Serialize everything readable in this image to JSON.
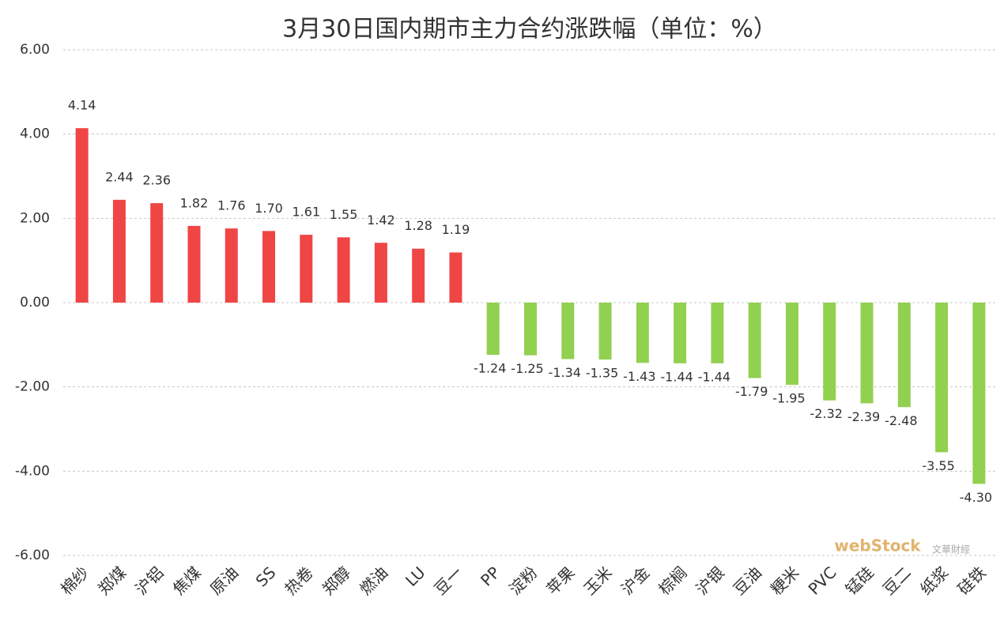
{
  "chart_data": {
    "type": "bar",
    "title": "3月30日国内期市主力合约涨跌幅（单位：%）",
    "categories": [
      "棉纱",
      "郑煤",
      "沪铝",
      "焦煤",
      "原油",
      "SS",
      "热卷",
      "郑醇",
      "燃油",
      "LU",
      "豆一",
      "PP",
      "淀粉",
      "苹果",
      "玉米",
      "沪金",
      "棕榈",
      "沪银",
      "豆油",
      "粳米",
      "PVC",
      "锰硅",
      "豆二",
      "纸浆",
      "硅铁"
    ],
    "values": [
      4.14,
      2.44,
      2.36,
      1.82,
      1.76,
      1.7,
      1.61,
      1.55,
      1.42,
      1.28,
      1.19,
      -1.24,
      -1.25,
      -1.34,
      -1.35,
      -1.43,
      -1.44,
      -1.44,
      -1.79,
      -1.95,
      -2.32,
      -2.39,
      -2.48,
      -3.55,
      -4.3
    ],
    "value_labels": [
      "4.14",
      "2.44",
      "2.36",
      "1.82",
      "1.76",
      "1.70",
      "1.61",
      "1.55",
      "1.42",
      "1.28",
      "1.19",
      "-1.24",
      "-1.25",
      "-1.34",
      "-1.35",
      "-1.43",
      "-1.44",
      "-1.44",
      "-1.79",
      "-1.95",
      "-2.32",
      "-2.39",
      "-2.48",
      "-3.55",
      "-4.30"
    ],
    "positive_color": "#f04545",
    "negative_color": "#92d050",
    "ylim": [
      -6,
      6
    ],
    "yticks": [
      {
        "value": -6,
        "label": "-6.00"
      },
      {
        "value": -4,
        "label": "-4.00"
      },
      {
        "value": -2,
        "label": "-2.00"
      },
      {
        "value": 0,
        "label": "0.00"
      },
      {
        "value": 2,
        "label": "2.00"
      },
      {
        "value": 4,
        "label": "4.00"
      },
      {
        "value": 6,
        "label": "6.00"
      }
    ],
    "grid": true,
    "watermark": "webStock",
    "watermark_sub": "文華財經"
  }
}
